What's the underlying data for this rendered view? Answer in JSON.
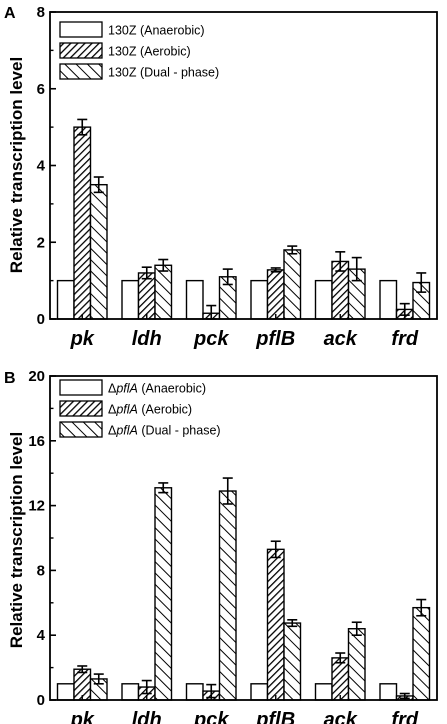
{
  "chart_data": [
    {
      "panel": "A",
      "type": "bar",
      "xlabel": "",
      "ylabel": "Relative transcription level",
      "ylim": [
        0,
        8
      ],
      "yticks": [
        0,
        2,
        4,
        6,
        8
      ],
      "categories": [
        "pk",
        "ldh",
        "pck",
        "pflB",
        "ack",
        "frd"
      ],
      "series": [
        {
          "name": "130Z (Anaerobic)",
          "legend_parts": [
            "130Z",
            " (Anaerobic)"
          ],
          "pattern": "white",
          "values": [
            1,
            1,
            1,
            1,
            1,
            1
          ],
          "errors": [
            0,
            0,
            0,
            0,
            0,
            0
          ]
        },
        {
          "name": "130Z (Aerobic)",
          "legend_parts": [
            "130Z",
            " (Aerobic)"
          ],
          "pattern": "dense",
          "values": [
            5.0,
            1.2,
            0.15,
            1.28,
            1.5,
            0.25
          ],
          "errors": [
            0.2,
            0.15,
            0.2,
            0.05,
            0.25,
            0.15
          ]
        },
        {
          "name": "130Z (Dual - phase)",
          "legend_parts": [
            "130Z",
            " (Dual - phase)"
          ],
          "pattern": "sparse",
          "values": [
            3.5,
            1.4,
            1.1,
            1.8,
            1.3,
            0.95
          ],
          "errors": [
            0.2,
            0.15,
            0.2,
            0.1,
            0.3,
            0.25
          ]
        }
      ],
      "legend_position": "top-left"
    },
    {
      "panel": "B",
      "type": "bar",
      "xlabel": "",
      "ylabel": "Relative transcription level",
      "ylim": [
        0,
        20
      ],
      "yticks": [
        0,
        4,
        8,
        12,
        16,
        20
      ],
      "categories": [
        "pk",
        "ldh",
        "pck",
        "pflB",
        "ack",
        "frd"
      ],
      "series": [
        {
          "name": "ΔpflA (Anaerobic)",
          "legend_parts": [
            "Δ",
            "pflA",
            " (Anaerobic)"
          ],
          "pattern": "white",
          "values": [
            1,
            1,
            1,
            1,
            1,
            1
          ],
          "errors": [
            0,
            0,
            0,
            0,
            0,
            0
          ]
        },
        {
          "name": "ΔpflA (Aerobic)",
          "legend_parts": [
            "Δ",
            "pflA",
            " (Aerobic)"
          ],
          "pattern": "dense",
          "values": [
            1.9,
            0.8,
            0.55,
            9.3,
            2.6,
            0.25
          ],
          "errors": [
            0.2,
            0.4,
            0.4,
            0.5,
            0.3,
            0.15
          ]
        },
        {
          "name": "ΔpflA (Dual - phase)",
          "legend_parts": [
            "Δ",
            "pflA",
            " (Dual - phase)"
          ],
          "pattern": "sparse",
          "values": [
            1.3,
            13.1,
            12.9,
            4.75,
            4.4,
            5.7
          ],
          "errors": [
            0.3,
            0.3,
            0.8,
            0.2,
            0.4,
            0.5
          ]
        }
      ],
      "legend_position": "top-left"
    }
  ]
}
